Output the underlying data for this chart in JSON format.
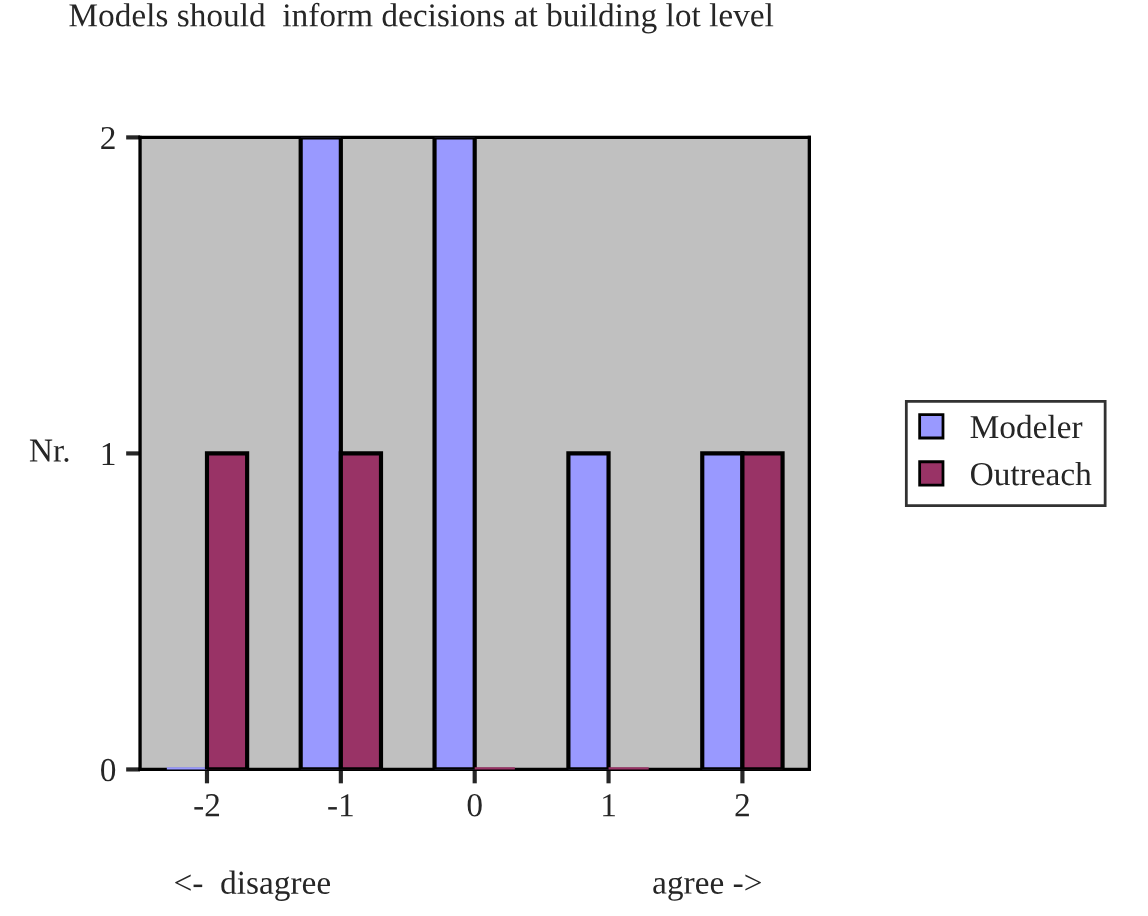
{
  "chart_data": {
    "type": "bar",
    "title": "Models should  inform decisions at building lot level",
    "ylabel": "Nr.",
    "categories": [
      "-2",
      "-1",
      "0",
      "1",
      "2"
    ],
    "series": [
      {
        "name": "Modeler",
        "color": "#9999ff",
        "values": [
          0,
          2,
          2,
          1,
          1
        ]
      },
      {
        "name": "Outreach",
        "color": "#993366",
        "values": [
          1,
          1,
          0,
          0,
          1
        ]
      }
    ],
    "ylim": [
      0,
      2
    ],
    "yticks": [
      0,
      1,
      2
    ],
    "grid": false,
    "legend": "right",
    "annotations": [
      "<-  disagree",
      "agree ->"
    ]
  }
}
